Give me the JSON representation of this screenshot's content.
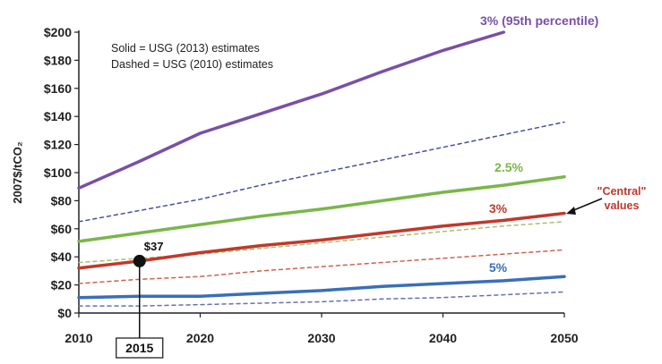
{
  "chart_data": {
    "type": "line",
    "x": [
      2010,
      2015,
      2020,
      2025,
      2030,
      2035,
      2040,
      2045,
      2050
    ],
    "xlim": [
      2010,
      2050
    ],
    "ylim": [
      0,
      200
    ],
    "ylabel": "2007$/tCO₂",
    "x_ticks": [
      "2010",
      "2020",
      "2030",
      "2040",
      "2050"
    ],
    "y_ticks": [
      "$0",
      "$20",
      "$40",
      "$60",
      "$80",
      "$100",
      "$120",
      "$140",
      "$160",
      "$180",
      "$200"
    ],
    "grid": false,
    "legend_note": [
      "Solid = USG (2013) estimates",
      "Dashed = USG (2010) estimates"
    ],
    "series": [
      {
        "name": "3% (95th percentile)",
        "style": "solid",
        "color": "#7a4fa6",
        "values": [
          89,
          108,
          128,
          142,
          156,
          172,
          187,
          200,
          null
        ]
      },
      {
        "name": "2.5%",
        "style": "solid",
        "color": "#7ab648",
        "values": [
          51,
          57,
          63,
          69,
          74,
          80,
          86,
          91,
          97
        ]
      },
      {
        "name": "3%",
        "style": "solid",
        "color": "#c0392b",
        "values": [
          32,
          37,
          43,
          48,
          52,
          57,
          62,
          66,
          71
        ]
      },
      {
        "name": "5%",
        "style": "solid",
        "color": "#3a6fb8",
        "values": [
          11,
          12,
          12,
          14,
          16,
          19,
          21,
          23,
          26
        ]
      },
      {
        "style": "dashed",
        "color": "#4a4fa0",
        "values": [
          65,
          73,
          81,
          91,
          100,
          109,
          118,
          127,
          136
        ]
      },
      {
        "style": "dashed",
        "color": "#a8c070",
        "values": [
          36,
          39,
          42,
          46,
          50,
          54,
          58,
          62,
          65
        ]
      },
      {
        "style": "dashed",
        "color": "#d06050",
        "values": [
          21,
          24,
          26,
          30,
          33,
          36,
          39,
          42,
          45
        ]
      },
      {
        "style": "dashed",
        "color": "#6a70b0",
        "values": [
          5,
          5,
          6,
          7,
          8,
          10,
          11,
          13,
          15
        ]
      }
    ],
    "annotations": {
      "point": {
        "x": 2015,
        "y": 37,
        "label": "$37",
        "color": "#111111"
      },
      "year_box": "2015",
      "central_label": [
        "\"Central\"",
        "values"
      ],
      "central_color": "#c0392b"
    }
  }
}
